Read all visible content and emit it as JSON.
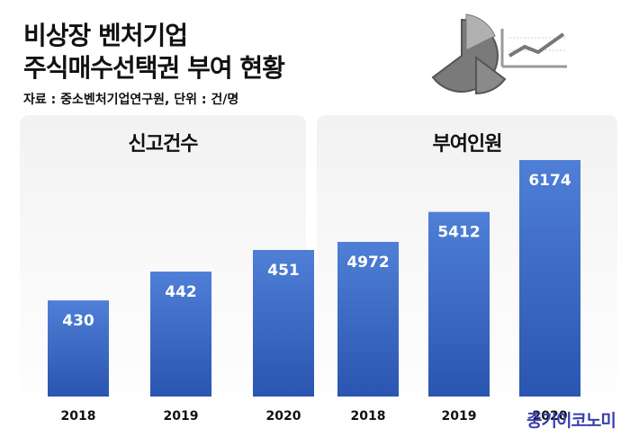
{
  "title": {
    "line1": "비상장 벤처기업",
    "line2": "주식매수선택권 부여 현황",
    "source": "자료 : 중소벤처기업연구원, 단위 : 건/명"
  },
  "watermark": "중기이코노미",
  "colors": {
    "bar_top": "#4f7fd6",
    "bar_bottom": "#2a55b0",
    "label": "#ffffff",
    "axis_text": "#111111"
  },
  "chart_data": [
    {
      "type": "bar",
      "title": "신고건수",
      "categories": [
        "2018",
        "2019",
        "2020"
      ],
      "values": [
        430,
        442,
        451
      ],
      "ylim": [
        390,
        460
      ],
      "grid": false
    },
    {
      "type": "bar",
      "title": "부여인원",
      "categories": [
        "2018",
        "2019",
        "2020"
      ],
      "values": [
        4972,
        5412,
        6174
      ],
      "ylim": [
        2700,
        6300
      ],
      "grid": false
    }
  ]
}
